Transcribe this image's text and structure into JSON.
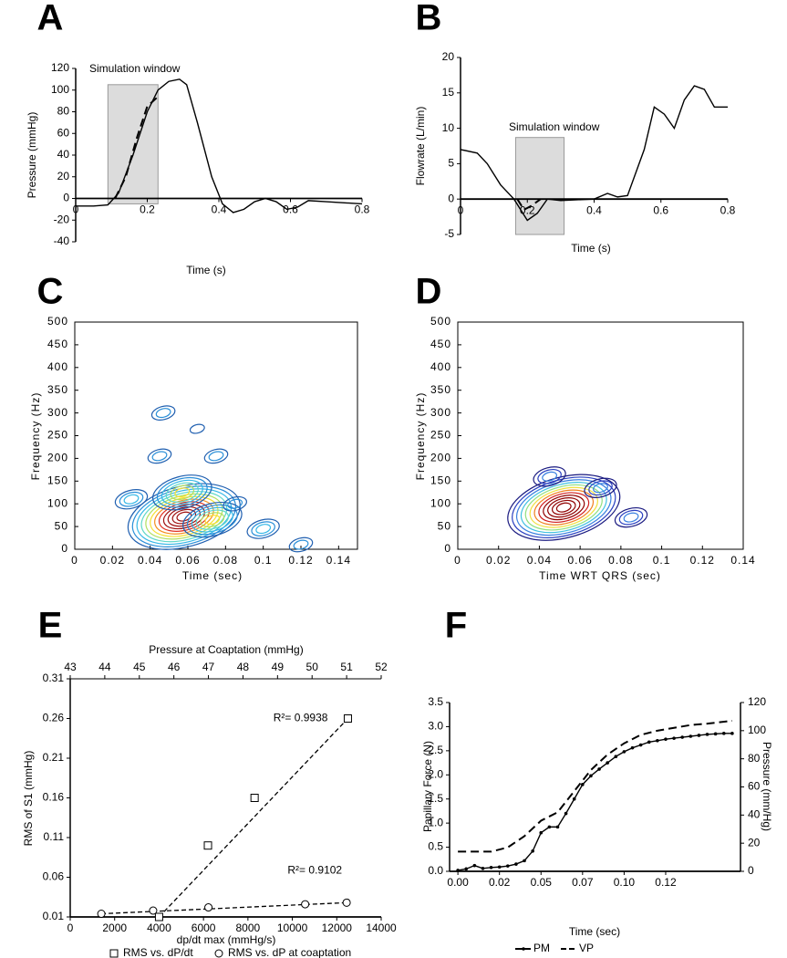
{
  "chart_data": [
    {
      "type": "line",
      "panel_label": "A",
      "xlabel": "Time (s)",
      "ylabel": "Pressure (mmHg)",
      "annotation": "Simulation window",
      "window": {
        "x": [
          0.09,
          0.23
        ],
        "y": [
          -5,
          105
        ],
        "color": "#dcdcdc"
      },
      "xlim": [
        0,
        0.8
      ],
      "xticks": [
        0,
        0.2,
        0.4,
        0.6,
        0.8
      ],
      "ylim": [
        -40,
        120
      ],
      "yticks": [
        -40,
        -20,
        0,
        20,
        40,
        60,
        80,
        100,
        120
      ],
      "series": [
        {
          "color": "#000000",
          "x": [
            0,
            0.05,
            0.09,
            0.12,
            0.16,
            0.2,
            0.23,
            0.26,
            0.29,
            0.31,
            0.34,
            0.38,
            0.41,
            0.44,
            0.47,
            0.5,
            0.53,
            0.56,
            0.59,
            0.62,
            0.65,
            0.7,
            0.8
          ],
          "values": [
            -7,
            -7,
            -6,
            5,
            40,
            80,
            100,
            108,
            110,
            105,
            70,
            20,
            -5,
            -13,
            -10,
            -3,
            0,
            -3,
            -10,
            -8,
            -2,
            -3,
            -5
          ]
        },
        {
          "color": "#000000",
          "dash": true,
          "x": [
            0.11,
            0.14,
            0.17,
            0.2,
            0.23
          ],
          "values": [
            0,
            20,
            55,
            85,
            94
          ]
        }
      ]
    },
    {
      "type": "line",
      "panel_label": "B",
      "xlabel": "Time (s)",
      "ylabel": "Flowrate (L/min)",
      "annotation": "Simulation window",
      "window": {
        "x": [
          0.165,
          0.31
        ],
        "y": [
          -5,
          8.7
        ],
        "color": "#dcdcdc"
      },
      "xlim": [
        0,
        0.8
      ],
      "xticks": [
        0,
        0.2,
        0.4,
        0.6,
        0.8
      ],
      "ylim": [
        -5,
        20
      ],
      "yticks": [
        -5,
        0,
        5,
        10,
        15,
        20
      ],
      "series": [
        {
          "color": "#000000",
          "x": [
            0,
            0.05,
            0.08,
            0.12,
            0.16,
            0.2,
            0.23,
            0.26,
            0.3,
            0.4,
            0.44,
            0.47,
            0.5,
            0.55,
            0.58,
            0.61,
            0.64,
            0.67,
            0.7,
            0.73,
            0.76,
            0.8
          ],
          "values": [
            7,
            6.5,
            5,
            2,
            0,
            -3,
            -2,
            0,
            -0.2,
            0,
            0.8,
            0.3,
            0.5,
            7,
            13,
            12,
            10,
            14,
            16,
            15.5,
            13,
            13
          ]
        },
        {
          "color": "#000000",
          "dash": true,
          "x": [
            0.17,
            0.19,
            0.21,
            0.24
          ],
          "values": [
            0,
            -1.5,
            -1,
            0
          ]
        }
      ]
    },
    {
      "type": "contour",
      "panel_label": "C",
      "xlabel": "Time (sec)",
      "ylabel": "Frequency (Hz)",
      "xlim": [
        0,
        0.15
      ],
      "xticks": [
        0,
        0.02,
        0.04,
        0.06,
        0.08,
        0.1,
        0.12,
        0.14
      ],
      "ylim": [
        0,
        500
      ],
      "yticks": [
        0,
        50,
        100,
        150,
        200,
        250,
        300,
        350,
        400,
        450,
        500
      ],
      "colors": [
        "#1f5fb0",
        "#2a8fd8",
        "#36b8e6",
        "#60d8c8",
        "#b0e060",
        "#f5e030",
        "#f59020",
        "#e03020",
        "#a01010"
      ],
      "peaks": [
        {
          "x": 0.058,
          "y": 72,
          "levels": 12
        },
        {
          "x": 0.057,
          "y": 125,
          "levels": 6
        },
        {
          "x": 0.073,
          "y": 65,
          "levels": 6
        },
        {
          "x": 0.047,
          "y": 300,
          "levels": 2
        },
        {
          "x": 0.065,
          "y": 265,
          "levels": 1
        },
        {
          "x": 0.075,
          "y": 205,
          "levels": 2
        },
        {
          "x": 0.045,
          "y": 205,
          "levels": 2
        },
        {
          "x": 0.03,
          "y": 110,
          "levels": 3
        },
        {
          "x": 0.1,
          "y": 45,
          "levels": 3
        },
        {
          "x": 0.085,
          "y": 100,
          "levels": 2
        },
        {
          "x": 0.12,
          "y": 10,
          "levels": 2
        }
      ]
    },
    {
      "type": "contour",
      "panel_label": "D",
      "xlabel": "Time WRT QRS (sec)",
      "ylabel": "Frequency (Hz)",
      "xlim": [
        0,
        0.14
      ],
      "xticks": [
        0,
        0.02,
        0.04,
        0.06,
        0.08,
        0.1,
        0.12,
        0.14
      ],
      "ylim": [
        0,
        500
      ],
      "yticks": [
        0,
        50,
        100,
        150,
        200,
        250,
        300,
        350,
        400,
        450,
        500
      ],
      "colors": [
        "#1a1a80",
        "#2a40c0",
        "#3a80e0",
        "#40c0e0",
        "#90e080",
        "#f0e040",
        "#f08020",
        "#d02020",
        "#900000"
      ],
      "peaks": [
        {
          "x": 0.052,
          "y": 92,
          "levels": 12
        },
        {
          "x": 0.045,
          "y": 160,
          "levels": 3
        },
        {
          "x": 0.07,
          "y": 135,
          "levels": 3
        },
        {
          "x": 0.085,
          "y": 70,
          "levels": 3
        }
      ]
    },
    {
      "type": "scatter",
      "panel_label": "E",
      "xlabel": "dp/dt max (mmHg/s)",
      "x2label": "Pressure at Coaptation (mmHg)",
      "ylabel": "RMS of S1 (mmHg)",
      "xlim": [
        0,
        14000
      ],
      "xticks": [
        0,
        2000,
        4000,
        6000,
        8000,
        10000,
        12000,
        14000
      ],
      "x2lim": [
        43,
        52
      ],
      "x2ticks": [
        43,
        44,
        45,
        46,
        47,
        48,
        49,
        50,
        51,
        52
      ],
      "ylim": [
        0.01,
        0.31
      ],
      "yticks": [
        0.01,
        0.06,
        0.11,
        0.16,
        0.21,
        0.26,
        0.31
      ],
      "series": [
        {
          "name": "RMS vs. dP/dt",
          "marker": "square",
          "color": "#000000",
          "annotation": "R²= 0.9938",
          "x": [
            4000,
            6200,
            8300,
            12500
          ],
          "values": [
            0.01,
            0.1,
            0.16,
            0.26
          ]
        },
        {
          "name": "RMS vs. dP at coaptation",
          "marker": "circle",
          "axis": "x2",
          "color": "#000000",
          "annotation": "R²= 0.9102",
          "x": [
            43.9,
            45.4,
            47.0,
            49.8,
            51.0
          ],
          "values": [
            0.014,
            0.018,
            0.022,
            0.026,
            0.028
          ]
        }
      ]
    },
    {
      "type": "line",
      "panel_label": "F",
      "xlabel": "Time (sec)",
      "ylabel": "Papillary Force (N)",
      "y2label": "Pressure (mm/Hg)",
      "xlim": [
        -0.005,
        0.17
      ],
      "xticks": [
        {
          "value": 0,
          "label": "0.00"
        },
        {
          "value": 0.025,
          "label": "0.02"
        },
        {
          "value": 0.05,
          "label": "0.05"
        },
        {
          "value": 0.075,
          "label": "0.07"
        },
        {
          "value": 0.1,
          "label": "0.10"
        },
        {
          "value": 0.125,
          "label": "0.12"
        }
      ],
      "ylim": [
        0,
        3.5
      ],
      "yticks": [
        {
          "value": 0,
          "label": "0.0"
        },
        0.5,
        {
          "value": 1,
          "label": "1.0"
        },
        1.5,
        {
          "value": 2,
          "label": "2.0"
        },
        2.5,
        {
          "value": 3,
          "label": "3.0"
        },
        3.5
      ],
      "y2lim": [
        0,
        120
      ],
      "y2ticks": [
        0,
        20,
        40,
        60,
        80,
        100,
        120
      ],
      "series": [
        {
          "name": "PM",
          "color": "#000000",
          "marker": "dot",
          "x": [
            0,
            0.005,
            0.01,
            0.015,
            0.02,
            0.025,
            0.03,
            0.035,
            0.04,
            0.045,
            0.05,
            0.055,
            0.06,
            0.065,
            0.07,
            0.075,
            0.08,
            0.085,
            0.09,
            0.095,
            0.1,
            0.105,
            0.11,
            0.115,
            0.12,
            0.125,
            0.13,
            0.135,
            0.14,
            0.145,
            0.15,
            0.155,
            0.16,
            0.165
          ],
          "values": [
            0.02,
            0.05,
            0.12,
            0.06,
            0.08,
            0.09,
            0.11,
            0.15,
            0.22,
            0.42,
            0.8,
            0.92,
            0.92,
            1.2,
            1.5,
            1.8,
            1.98,
            2.12,
            2.25,
            2.38,
            2.48,
            2.56,
            2.62,
            2.68,
            2.71,
            2.74,
            2.76,
            2.78,
            2.8,
            2.82,
            2.84,
            2.85,
            2.86,
            2.86
          ]
        },
        {
          "name": "VP",
          "color": "#000000",
          "dash": true,
          "axis": "y2",
          "x": [
            0,
            0.02,
            0.03,
            0.04,
            0.05,
            0.06,
            0.07,
            0.08,
            0.09,
            0.1,
            0.11,
            0.12,
            0.13,
            0.14,
            0.15,
            0.165
          ],
          "values": [
            14,
            14,
            17,
            25,
            36,
            42,
            57,
            72,
            83,
            91,
            97,
            100,
            102,
            104,
            105,
            107
          ]
        }
      ]
    }
  ]
}
